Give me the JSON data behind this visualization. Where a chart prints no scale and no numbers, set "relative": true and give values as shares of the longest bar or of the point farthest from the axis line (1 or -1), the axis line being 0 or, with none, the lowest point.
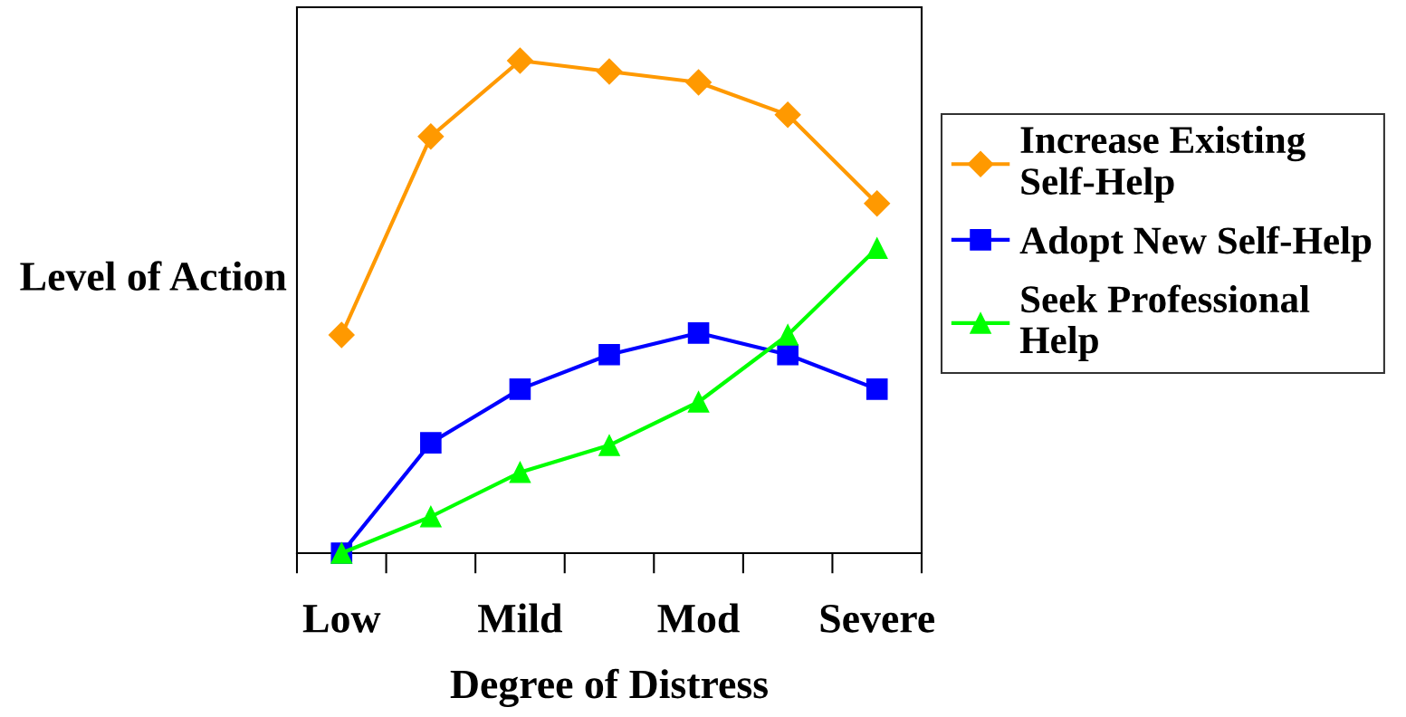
{
  "chart_data": {
    "type": "line",
    "relative": true,
    "categories": [
      "Low",
      null,
      "Mild",
      null,
      "Mod",
      null,
      "Severe"
    ],
    "xlabel": "Degree of Distress",
    "ylabel": "Level of Action",
    "legend": "right",
    "grid": false,
    "line_style": "solid",
    "series": [
      {
        "name": "Increase Existing\nSelf-Help",
        "color": "#ff9900",
        "marker": "diamond",
        "values": [
          0.443,
          0.846,
          1,
          0.978,
          0.956,
          0.89,
          0.71
        ]
      },
      {
        "name": "Adopt New Self-Help",
        "color": "#0000ff",
        "marker": "square",
        "values": [
          0,
          0.224,
          0.333,
          0.403,
          0.447,
          0.403,
          0.333
        ]
      },
      {
        "name": "Seek Professional\nHelp",
        "color": "#00ff00",
        "marker": "triangle",
        "values": [
          0,
          0.074,
          0.164,
          0.219,
          0.307,
          0.443,
          0.619
        ]
      }
    ]
  }
}
